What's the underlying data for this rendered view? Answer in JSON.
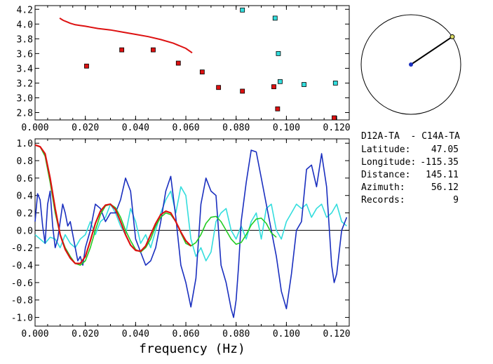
{
  "colors": {
    "red": "#dd1111",
    "cyan": "#33dddd",
    "blue": "#1a2fbf",
    "green": "#22cc22",
    "point_end": "#dddd66",
    "axis": "#000000"
  },
  "info": {
    "station": "D12A-TA  - C14A-TA",
    "lines": [
      {
        "label": "Latitude:",
        "value": "47.05"
      },
      {
        "label": "Longitude:",
        "value": "-115.35"
      },
      {
        "label": "Distance:",
        "value": "145.11"
      },
      {
        "label": "Azimuth:",
        "value": "56.12"
      },
      {
        "label": "Records:",
        "value": "9"
      }
    ]
  },
  "azimuth_dial": {
    "azimuth_deg": 56.12
  },
  "chart_data": [
    {
      "type": "scatter",
      "xlim": [
        0.0,
        0.125
      ],
      "ylim": [
        2.7,
        4.25
      ],
      "xticks": [
        0.0,
        0.02,
        0.04,
        0.06,
        0.08,
        0.1,
        0.12
      ],
      "xtick_labels": [
        "0.000",
        "0.020",
        "0.040",
        "0.060",
        "0.080",
        "0.100",
        "0.120"
      ],
      "yticks": [
        2.8,
        3.0,
        3.2,
        3.4,
        3.6,
        3.8,
        4.0,
        4.2
      ],
      "ytick_labels": [
        "2.8",
        "3.0",
        "3.2",
        "3.4",
        "3.6",
        "3.8",
        "4.0",
        "4.2"
      ],
      "series": [
        {
          "kind": "line",
          "color": "red",
          "x": [
            0.0098,
            0.0112,
            0.0126,
            0.014,
            0.016,
            0.018,
            0.02,
            0.025,
            0.03,
            0.035,
            0.04,
            0.045,
            0.05,
            0.055,
            0.06,
            0.0625
          ],
          "y": [
            4.08,
            4.05,
            4.03,
            4.01,
            3.99,
            3.98,
            3.97,
            3.94,
            3.92,
            3.89,
            3.86,
            3.83,
            3.79,
            3.74,
            3.67,
            3.61
          ]
        },
        {
          "kind": "points",
          "color": "red",
          "x": [
            0.0205,
            0.0345,
            0.047,
            0.057,
            0.0665,
            0.073,
            0.0825,
            0.095,
            0.0965,
            0.119
          ],
          "y": [
            3.43,
            3.65,
            3.65,
            3.47,
            3.35,
            3.14,
            3.09,
            3.15,
            2.85,
            2.69
          ]
        },
        {
          "kind": "points",
          "color": "cyan",
          "x": [
            0.0825,
            0.0955,
            0.0968,
            0.0975,
            0.107,
            0.1195
          ],
          "y": [
            4.19,
            4.08,
            3.6,
            3.22,
            3.18,
            3.2
          ]
        }
      ]
    },
    {
      "type": "line",
      "xlabel": "frequency (Hz)",
      "xlim": [
        0.0,
        0.125
      ],
      "ylim": [
        -1.1,
        1.05
      ],
      "xticks": [
        0.0,
        0.02,
        0.04,
        0.06,
        0.08,
        0.1,
        0.12
      ],
      "xtick_labels": [
        "0.000",
        "0.020",
        "0.040",
        "0.060",
        "0.080",
        "0.100",
        "0.120"
      ],
      "yticks": [
        -1.0,
        -0.8,
        -0.6,
        -0.4,
        -0.2,
        0.0,
        0.2,
        0.4,
        0.6,
        0.8,
        1.0
      ],
      "ytick_labels": [
        "-1.0",
        "-0.8",
        "-0.6",
        "-0.4",
        "-0.2",
        "0.0",
        "0.2",
        "0.4",
        "0.6",
        "0.8",
        "1.0"
      ],
      "zero_line": 0.0,
      "series": [
        {
          "color": "cyan",
          "x": [
            0.0,
            0.002,
            0.004,
            0.006,
            0.008,
            0.01,
            0.012,
            0.014,
            0.016,
            0.018,
            0.02,
            0.022,
            0.024,
            0.026,
            0.028,
            0.03,
            0.032,
            0.034,
            0.036,
            0.038,
            0.04,
            0.042,
            0.044,
            0.046,
            0.048,
            0.05,
            0.052,
            0.054,
            0.056,
            0.058,
            0.06,
            0.062,
            0.064,
            0.066,
            0.068,
            0.07,
            0.072,
            0.074,
            0.076,
            0.078,
            0.08,
            0.082,
            0.084,
            0.086,
            0.088,
            0.09,
            0.092,
            0.094,
            0.096,
            0.098,
            0.1,
            0.102,
            0.104,
            0.106,
            0.108,
            0.11,
            0.112,
            0.114,
            0.116,
            0.118,
            0.12,
            0.122,
            0.124
          ],
          "y": [
            -0.05,
            -0.1,
            -0.15,
            -0.08,
            -0.1,
            -0.2,
            -0.05,
            -0.15,
            -0.2,
            -0.1,
            -0.05,
            0.1,
            -0.05,
            0.1,
            0.15,
            0.3,
            0.2,
            0.05,
            -0.05,
            0.25,
            0.1,
            -0.15,
            -0.05,
            -0.2,
            0.0,
            0.2,
            0.35,
            0.45,
            0.2,
            0.5,
            0.4,
            -0.1,
            -0.3,
            -0.2,
            -0.35,
            -0.25,
            0.1,
            0.2,
            0.25,
            0.0,
            -0.1,
            0.05,
            -0.1,
            0.1,
            0.2,
            -0.1,
            0.25,
            0.3,
            0.0,
            -0.1,
            0.1,
            0.2,
            0.3,
            0.25,
            0.3,
            0.15,
            0.25,
            0.3,
            0.15,
            0.2,
            0.3,
            0.1,
            0.05
          ]
        },
        {
          "color": "blue",
          "x": [
            0.0,
            0.001,
            0.002,
            0.003,
            0.004,
            0.005,
            0.006,
            0.007,
            0.008,
            0.009,
            0.01,
            0.011,
            0.012,
            0.013,
            0.014,
            0.015,
            0.016,
            0.017,
            0.018,
            0.019,
            0.02,
            0.022,
            0.024,
            0.026,
            0.028,
            0.03,
            0.032,
            0.034,
            0.036,
            0.038,
            0.04,
            0.042,
            0.044,
            0.046,
            0.048,
            0.05,
            0.052,
            0.054,
            0.056,
            0.058,
            0.06,
            0.062,
            0.064,
            0.066,
            0.068,
            0.07,
            0.072,
            0.074,
            0.076,
            0.078,
            0.079,
            0.08,
            0.081,
            0.082,
            0.084,
            0.086,
            0.088,
            0.09,
            0.092,
            0.094,
            0.096,
            0.098,
            0.1,
            0.102,
            0.104,
            0.106,
            0.108,
            0.11,
            0.112,
            0.114,
            0.116,
            0.118,
            0.119,
            0.12,
            0.122,
            0.124
          ],
          "y": [
            0.1,
            0.42,
            0.35,
            0.05,
            -0.15,
            0.3,
            0.45,
            0.05,
            -0.2,
            -0.1,
            0.1,
            0.3,
            0.2,
            0.05,
            0.1,
            -0.05,
            -0.2,
            -0.35,
            -0.3,
            -0.4,
            -0.2,
            0.0,
            0.3,
            0.25,
            0.1,
            0.2,
            0.2,
            0.35,
            0.6,
            0.45,
            -0.1,
            -0.25,
            -0.4,
            -0.35,
            -0.2,
            0.1,
            0.45,
            0.62,
            0.15,
            -0.4,
            -0.6,
            -0.88,
            -0.55,
            0.3,
            0.6,
            0.45,
            0.4,
            -0.4,
            -0.6,
            -0.9,
            -1.0,
            -0.8,
            -0.4,
            0.1,
            0.55,
            0.92,
            0.9,
            0.6,
            0.3,
            0.0,
            -0.3,
            -0.7,
            -0.9,
            -0.5,
            0.0,
            0.1,
            0.7,
            0.75,
            0.5,
            0.88,
            0.5,
            -0.4,
            -0.6,
            -0.5,
            0.0,
            0.15
          ]
        },
        {
          "color": "green",
          "x": [
            0.0,
            0.002,
            0.004,
            0.006,
            0.008,
            0.01,
            0.012,
            0.014,
            0.016,
            0.018,
            0.02,
            0.022,
            0.024,
            0.026,
            0.028,
            0.03,
            0.032,
            0.034,
            0.036,
            0.038,
            0.04,
            0.042,
            0.044,
            0.046,
            0.048,
            0.05,
            0.052,
            0.054,
            0.056,
            0.058,
            0.06,
            0.062,
            0.064,
            0.066,
            0.068,
            0.07,
            0.072,
            0.074,
            0.076,
            0.078,
            0.08,
            0.082,
            0.084,
            0.086,
            0.088,
            0.09,
            0.092,
            0.094,
            0.096
          ],
          "y": [
            0.98,
            0.96,
            0.85,
            0.55,
            0.2,
            -0.05,
            -0.2,
            -0.3,
            -0.38,
            -0.4,
            -0.35,
            -0.2,
            0.0,
            0.18,
            0.28,
            0.3,
            0.26,
            0.15,
            0.0,
            -0.12,
            -0.22,
            -0.25,
            -0.2,
            -0.1,
            0.05,
            0.15,
            0.2,
            0.18,
            0.1,
            -0.03,
            -0.15,
            -0.18,
            -0.14,
            -0.05,
            0.08,
            0.15,
            0.16,
            0.1,
            0.0,
            -0.1,
            -0.16,
            -0.14,
            -0.05,
            0.06,
            0.13,
            0.14,
            0.08,
            -0.03,
            -0.08
          ]
        },
        {
          "color": "red",
          "x": [
            0.0,
            0.002,
            0.004,
            0.006,
            0.008,
            0.01,
            0.012,
            0.014,
            0.016,
            0.018,
            0.02,
            0.022,
            0.024,
            0.026,
            0.028,
            0.03,
            0.032,
            0.034,
            0.036,
            0.038,
            0.04,
            0.042,
            0.044,
            0.046,
            0.048,
            0.05,
            0.052,
            0.054,
            0.056,
            0.058,
            0.06,
            0.062
          ],
          "y": [
            0.98,
            0.96,
            0.88,
            0.6,
            0.25,
            -0.05,
            -0.22,
            -0.32,
            -0.38,
            -0.38,
            -0.3,
            -0.12,
            0.08,
            0.22,
            0.29,
            0.3,
            0.24,
            0.1,
            -0.05,
            -0.17,
            -0.23,
            -0.24,
            -0.18,
            -0.05,
            0.08,
            0.18,
            0.22,
            0.2,
            0.1,
            -0.02,
            -0.12,
            -0.18
          ]
        }
      ]
    }
  ]
}
